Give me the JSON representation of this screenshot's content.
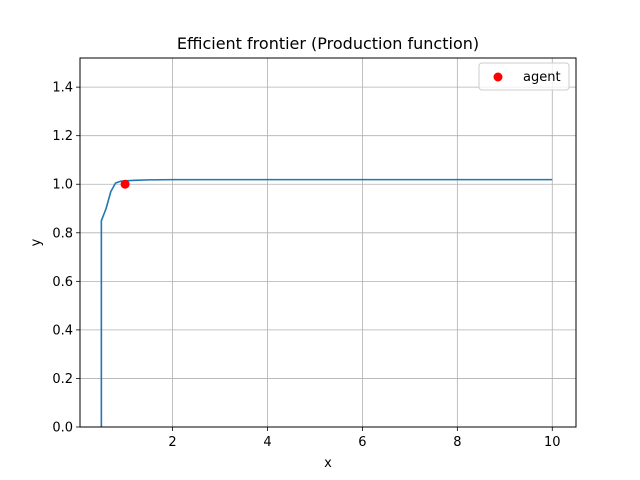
{
  "chart_data": {
    "type": "line",
    "title": "Efficient frontier (Production function)",
    "xlabel": "x",
    "ylabel": "y",
    "xlim": [
      0.05,
      10.5
    ],
    "ylim": [
      0,
      1.52
    ],
    "xticks": [
      2,
      4,
      6,
      8,
      10
    ],
    "yticks": [
      0.0,
      0.2,
      0.4,
      0.6,
      0.8,
      1.0,
      1.2,
      1.4
    ],
    "grid": true,
    "legend": {
      "placement": "top-right",
      "entries": [
        "agent"
      ]
    },
    "colors": {
      "line": "#1f77b4",
      "agent": "#ff0000",
      "grid": "#b0b0b0"
    },
    "series": [
      {
        "type": "line",
        "x": [
          0.5,
          0.5,
          0.5,
          0.6,
          0.7,
          0.8,
          0.9,
          1.0,
          1.2,
          1.5,
          2.0,
          4.0,
          6.0,
          8.0,
          10.0
        ],
        "y": [
          0.0,
          0.5,
          0.85,
          0.9,
          0.97,
          1.005,
          1.012,
          1.014,
          1.016,
          1.018,
          1.019,
          1.019,
          1.019,
          1.019,
          1.019
        ]
      },
      {
        "name": "agent",
        "type": "scatter",
        "x": [
          1.0
        ],
        "y": [
          1.0
        ]
      }
    ]
  }
}
